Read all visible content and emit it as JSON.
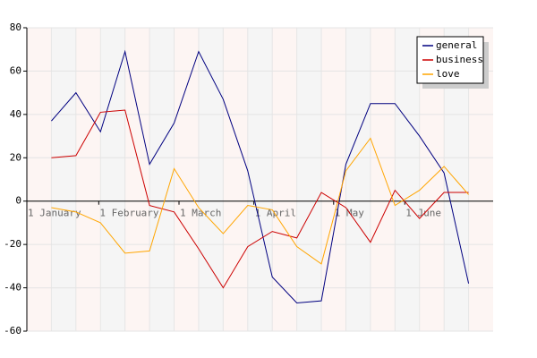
{
  "chart_data": {
    "type": "line",
    "x": [
      1,
      2,
      3,
      4,
      5,
      6,
      7,
      8,
      9,
      10,
      11,
      12,
      13,
      14,
      15,
      16,
      17,
      18
    ],
    "series": [
      {
        "name": "general",
        "color": "#000080",
        "values": [
          37,
          50,
          32,
          69,
          17,
          36,
          69,
          47,
          14,
          -35,
          -47,
          -46,
          17,
          45,
          45,
          30,
          13,
          -38
        ]
      },
      {
        "name": "business",
        "color": "#cc0000",
        "values": [
          20,
          21,
          41,
          42,
          -2,
          -5,
          -22,
          -40,
          -21,
          -14,
          -17,
          4,
          -3,
          -19,
          5,
          -8,
          4,
          4
        ]
      },
      {
        "name": "love",
        "color": "#ffa500",
        "values": [
          -3,
          -5,
          -10,
          -24,
          -23,
          15,
          -3,
          -15,
          -2,
          -4,
          -21,
          -29,
          14,
          29,
          -2,
          5,
          16,
          3
        ]
      }
    ],
    "xlim": [
      0,
      19
    ],
    "xticks": [
      {
        "value": 0,
        "label": "1 January"
      },
      {
        "value": 2.93,
        "label": "1 February"
      },
      {
        "value": 6.2,
        "label": "1 March"
      },
      {
        "value": 9.25,
        "label": "1 April"
      },
      {
        "value": 12.5,
        "label": "1 May"
      },
      {
        "value": 15.4,
        "label": "1 June"
      }
    ],
    "ylim": [
      -60,
      80
    ],
    "yticks": [
      -60,
      -40,
      -20,
      0,
      20,
      40,
      60,
      80
    ],
    "grid": true,
    "legend": "top-right"
  }
}
